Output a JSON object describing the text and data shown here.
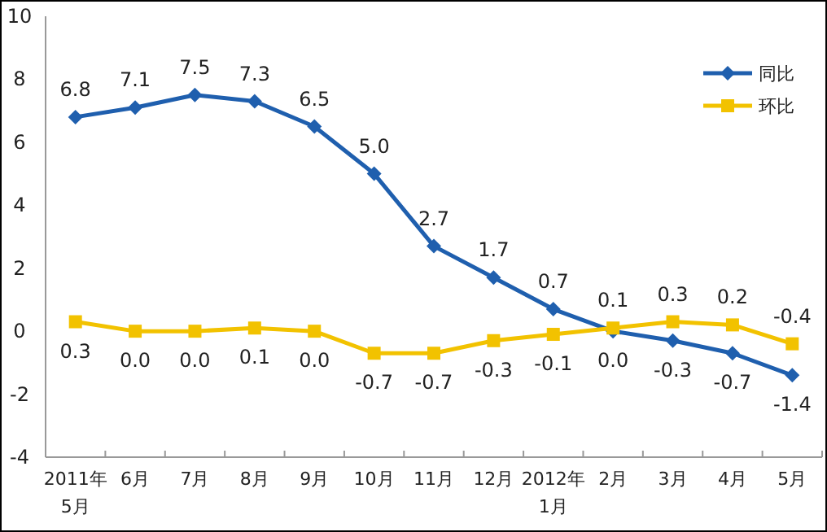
{
  "chart_data": {
    "type": "line",
    "categories": [
      "2011年\n5月",
      "6月",
      "7月",
      "8月",
      "9月",
      "10月",
      "11月",
      "12月",
      "2012年\n1月",
      "2月",
      "3月",
      "4月",
      "5月"
    ],
    "series": [
      {
        "name": "同比",
        "color": "#1f5fae",
        "marker": "diamond",
        "values": [
          6.8,
          7.1,
          7.5,
          7.3,
          6.5,
          5.0,
          2.7,
          1.7,
          0.7,
          0.0,
          -0.3,
          -0.7,
          -1.4
        ],
        "value_labels": [
          "6.8",
          "7.1",
          "7.5",
          "7.3",
          "6.5",
          "5.0",
          "2.7",
          "1.7",
          "0.7",
          "0.0",
          "-0.3",
          "-0.7",
          "-1.4"
        ]
      },
      {
        "name": "环比",
        "color": "#f2c200",
        "marker": "square",
        "values": [
          0.3,
          0.0,
          0.0,
          0.1,
          0.0,
          -0.7,
          -0.7,
          -0.3,
          -0.1,
          0.1,
          0.3,
          0.2,
          -0.4
        ],
        "value_labels": [
          "0.3",
          "0.0",
          "0.0",
          "0.1",
          "0.0",
          "-0.7",
          "-0.7",
          "-0.3",
          "-0.1",
          "0.1",
          "0.3",
          "0.2",
          "-0.4"
        ]
      }
    ],
    "ylim": [
      -4,
      10
    ],
    "yticks": [
      -4,
      -2,
      0,
      2,
      4,
      6,
      8,
      10
    ],
    "legend": "top right"
  }
}
